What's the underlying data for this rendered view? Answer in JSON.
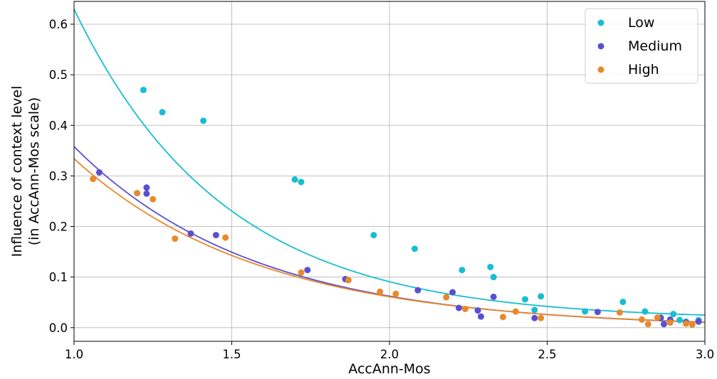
{
  "chart_data": {
    "type": "scatter",
    "xlabel": "AccAnn-Mos",
    "ylabel_lines": [
      "Influence of context level",
      "(in AccAnn-Mos scale)"
    ],
    "xlim": [
      1.0,
      3.0
    ],
    "ylim": [
      -0.027,
      0.645
    ],
    "xticks": [
      1.0,
      1.5,
      2.0,
      2.5,
      3.0
    ],
    "xtick_labels": [
      "1.0",
      "1.5",
      "2.0",
      "2.5",
      "3.0"
    ],
    "yticks": [
      0.0,
      0.1,
      0.2,
      0.3,
      0.4,
      0.5,
      0.6
    ],
    "ytick_labels": [
      "0.0",
      "0.1",
      "0.2",
      "0.3",
      "0.4",
      "0.5",
      "0.6"
    ],
    "grid": true,
    "legend_position": "top-right",
    "series": [
      {
        "name": "Low",
        "color": "#17becf",
        "points": [
          [
            1.22,
            0.47
          ],
          [
            1.28,
            0.426
          ],
          [
            1.41,
            0.409
          ],
          [
            1.7,
            0.293
          ],
          [
            1.72,
            0.288
          ],
          [
            1.95,
            0.183
          ],
          [
            2.08,
            0.156
          ],
          [
            2.23,
            0.114
          ],
          [
            2.32,
            0.12
          ],
          [
            2.33,
            0.1
          ],
          [
            2.43,
            0.056
          ],
          [
            2.46,
            0.035
          ],
          [
            2.48,
            0.062
          ],
          [
            2.62,
            0.032
          ],
          [
            2.74,
            0.051
          ],
          [
            2.81,
            0.032
          ],
          [
            2.86,
            0.02
          ],
          [
            2.9,
            0.027
          ],
          [
            2.92,
            0.015
          ],
          [
            2.94,
            0.012
          ],
          [
            2.98,
            0.015
          ]
        ],
        "fit": {
          "a": 0.614,
          "b": 0.0157,
          "k": 2.1
        }
      },
      {
        "name": "Medium",
        "color": "#5a4fcf",
        "points": [
          [
            1.08,
            0.307
          ],
          [
            1.23,
            0.277
          ],
          [
            1.23,
            0.265
          ],
          [
            1.37,
            0.186
          ],
          [
            1.45,
            0.183
          ],
          [
            1.74,
            0.114
          ],
          [
            1.86,
            0.096
          ],
          [
            2.09,
            0.074
          ],
          [
            2.2,
            0.07
          ],
          [
            2.22,
            0.039
          ],
          [
            2.28,
            0.034
          ],
          [
            2.29,
            0.022
          ],
          [
            2.33,
            0.061
          ],
          [
            2.46,
            0.019
          ],
          [
            2.66,
            0.031
          ],
          [
            2.86,
            0.019
          ],
          [
            2.87,
            0.007
          ],
          [
            2.89,
            0.016
          ],
          [
            2.94,
            0.01
          ],
          [
            2.98,
            0.012
          ]
        ],
        "fit": {
          "a": 0.358,
          "b": 0.0,
          "k": 1.75
        }
      },
      {
        "name": "High",
        "color": "#e8892a",
        "points": [
          [
            1.06,
            0.294
          ],
          [
            1.2,
            0.266
          ],
          [
            1.25,
            0.254
          ],
          [
            1.32,
            0.176
          ],
          [
            1.48,
            0.178
          ],
          [
            1.72,
            0.109
          ],
          [
            1.87,
            0.094
          ],
          [
            1.97,
            0.071
          ],
          [
            2.02,
            0.067
          ],
          [
            2.18,
            0.06
          ],
          [
            2.24,
            0.037
          ],
          [
            2.36,
            0.021
          ],
          [
            2.4,
            0.032
          ],
          [
            2.48,
            0.019
          ],
          [
            2.73,
            0.03
          ],
          [
            2.8,
            0.016
          ],
          [
            2.82,
            0.007
          ],
          [
            2.85,
            0.02
          ],
          [
            2.89,
            0.01
          ],
          [
            2.94,
            0.008
          ],
          [
            2.96,
            0.006
          ]
        ],
        "fit": {
          "a": 0.334,
          "b": 0.0,
          "k": 1.7
        }
      }
    ]
  }
}
